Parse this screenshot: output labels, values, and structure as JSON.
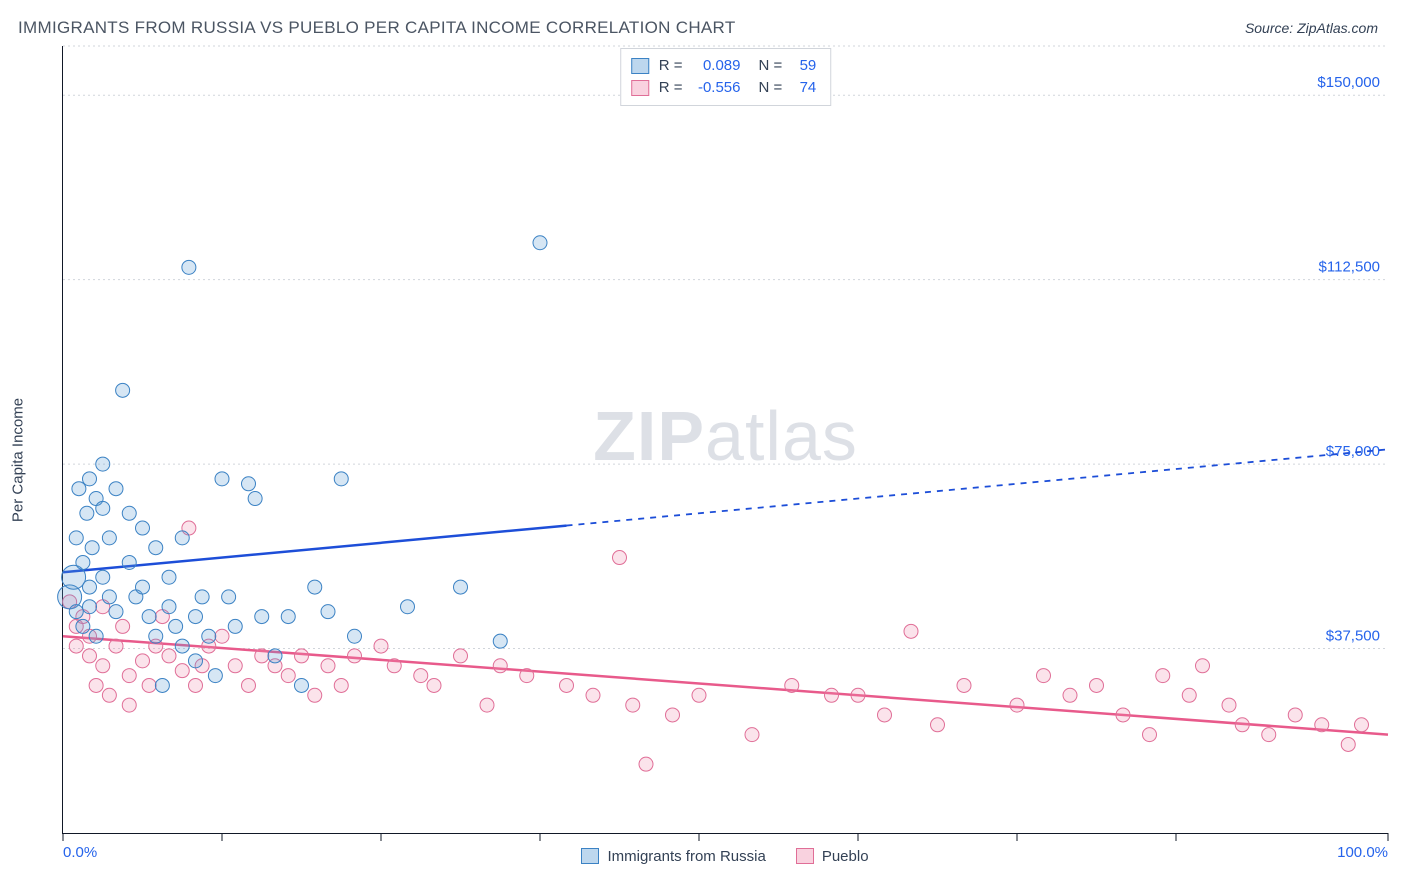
{
  "header": {
    "title": "IMMIGRANTS FROM RUSSIA VS PUEBLO PER CAPITA INCOME CORRELATION CHART",
    "source_prefix": "Source: ",
    "source_name": "ZipAtlas.com"
  },
  "watermark": {
    "zip": "ZIP",
    "atlas": "atlas"
  },
  "chart": {
    "type": "scatter",
    "ylabel": "Per Capita Income",
    "xlim": [
      0,
      100
    ],
    "ylim": [
      0,
      160000
    ],
    "y_ticks": [
      {
        "value": 37500,
        "label": "$37,500"
      },
      {
        "value": 75000,
        "label": "$75,000"
      },
      {
        "value": 112500,
        "label": "$112,500"
      },
      {
        "value": 150000,
        "label": "$150,000"
      }
    ],
    "x_ticks": [
      0,
      12,
      24,
      36,
      48,
      60,
      72,
      84,
      100
    ],
    "x_tick_labels": {
      "start": "0.0%",
      "end": "100.0%"
    },
    "grid_color": "#d1d5db",
    "background_color": "#ffffff",
    "marker_radius": 7,
    "marker_radius_large": 12,
    "series": [
      {
        "key": "russia",
        "label": "Immigrants from Russia",
        "color_fill": "#5b9bd5",
        "color_stroke": "#3b82c4",
        "r_value": "0.089",
        "n_value": "59",
        "trend": {
          "y_at_x0": 53000,
          "y_at_x100": 78000,
          "solid_until_x": 38,
          "color": "#1d4ed8"
        },
        "points": [
          [
            0.5,
            48000
          ],
          [
            0.8,
            52000
          ],
          [
            1,
            60000
          ],
          [
            1,
            45000
          ],
          [
            1.2,
            70000
          ],
          [
            1.5,
            55000
          ],
          [
            1.5,
            42000
          ],
          [
            1.8,
            65000
          ],
          [
            2,
            72000
          ],
          [
            2,
            50000
          ],
          [
            2,
            46000
          ],
          [
            2.2,
            58000
          ],
          [
            2.5,
            68000
          ],
          [
            2.5,
            40000
          ],
          [
            3,
            66000
          ],
          [
            3,
            75000
          ],
          [
            3,
            52000
          ],
          [
            3.5,
            48000
          ],
          [
            3.5,
            60000
          ],
          [
            4,
            45000
          ],
          [
            4,
            70000
          ],
          [
            4.5,
            90000
          ],
          [
            5,
            55000
          ],
          [
            5,
            65000
          ],
          [
            5.5,
            48000
          ],
          [
            6,
            62000
          ],
          [
            6,
            50000
          ],
          [
            6.5,
            44000
          ],
          [
            7,
            40000
          ],
          [
            7,
            58000
          ],
          [
            7.5,
            30000
          ],
          [
            8,
            46000
          ],
          [
            8,
            52000
          ],
          [
            8.5,
            42000
          ],
          [
            9,
            38000
          ],
          [
            9,
            60000
          ],
          [
            9.5,
            115000
          ],
          [
            10,
            44000
          ],
          [
            10,
            35000
          ],
          [
            10.5,
            48000
          ],
          [
            11,
            40000
          ],
          [
            11.5,
            32000
          ],
          [
            12,
            72000
          ],
          [
            12.5,
            48000
          ],
          [
            13,
            42000
          ],
          [
            14,
            71000
          ],
          [
            14.5,
            68000
          ],
          [
            15,
            44000
          ],
          [
            16,
            36000
          ],
          [
            17,
            44000
          ],
          [
            18,
            30000
          ],
          [
            19,
            50000
          ],
          [
            20,
            45000
          ],
          [
            21,
            72000
          ],
          [
            22,
            40000
          ],
          [
            26,
            46000
          ],
          [
            30,
            50000
          ],
          [
            33,
            39000
          ],
          [
            36,
            120000
          ]
        ]
      },
      {
        "key": "pueblo",
        "label": "Pueblo",
        "color_fill": "#f08fb0",
        "color_stroke": "#e06e97",
        "r_value": "-0.556",
        "n_value": "74",
        "trend": {
          "y_at_x0": 40000,
          "y_at_x100": 20000,
          "solid_until_x": 100,
          "color": "#e85a8b"
        },
        "points": [
          [
            0.5,
            47000
          ],
          [
            1,
            42000
          ],
          [
            1,
            38000
          ],
          [
            1.5,
            44000
          ],
          [
            2,
            40000
          ],
          [
            2,
            36000
          ],
          [
            2.5,
            30000
          ],
          [
            3,
            46000
          ],
          [
            3,
            34000
          ],
          [
            3.5,
            28000
          ],
          [
            4,
            38000
          ],
          [
            4.5,
            42000
          ],
          [
            5,
            32000
          ],
          [
            5,
            26000
          ],
          [
            6,
            35000
          ],
          [
            6.5,
            30000
          ],
          [
            7,
            38000
          ],
          [
            7.5,
            44000
          ],
          [
            8,
            36000
          ],
          [
            9,
            33000
          ],
          [
            9.5,
            62000
          ],
          [
            10,
            30000
          ],
          [
            10.5,
            34000
          ],
          [
            11,
            38000
          ],
          [
            12,
            40000
          ],
          [
            13,
            34000
          ],
          [
            14,
            30000
          ],
          [
            15,
            36000
          ],
          [
            16,
            34000
          ],
          [
            17,
            32000
          ],
          [
            18,
            36000
          ],
          [
            19,
            28000
          ],
          [
            20,
            34000
          ],
          [
            21,
            30000
          ],
          [
            22,
            36000
          ],
          [
            24,
            38000
          ],
          [
            25,
            34000
          ],
          [
            27,
            32000
          ],
          [
            28,
            30000
          ],
          [
            30,
            36000
          ],
          [
            32,
            26000
          ],
          [
            33,
            34000
          ],
          [
            35,
            32000
          ],
          [
            38,
            30000
          ],
          [
            40,
            28000
          ],
          [
            42,
            56000
          ],
          [
            43,
            26000
          ],
          [
            44,
            14000
          ],
          [
            46,
            24000
          ],
          [
            48,
            28000
          ],
          [
            52,
            20000
          ],
          [
            55,
            30000
          ],
          [
            58,
            28000
          ],
          [
            60,
            28000
          ],
          [
            62,
            24000
          ],
          [
            64,
            41000
          ],
          [
            66,
            22000
          ],
          [
            68,
            30000
          ],
          [
            72,
            26000
          ],
          [
            74,
            32000
          ],
          [
            76,
            28000
          ],
          [
            78,
            30000
          ],
          [
            80,
            24000
          ],
          [
            82,
            20000
          ],
          [
            83,
            32000
          ],
          [
            85,
            28000
          ],
          [
            86,
            34000
          ],
          [
            88,
            26000
          ],
          [
            89,
            22000
          ],
          [
            91,
            20000
          ],
          [
            93,
            24000
          ],
          [
            95,
            22000
          ],
          [
            97,
            18000
          ],
          [
            98,
            22000
          ]
        ]
      }
    ]
  },
  "corr_legend": {
    "r_label": "R =",
    "n_label": "N ="
  },
  "axis_labels": {}
}
